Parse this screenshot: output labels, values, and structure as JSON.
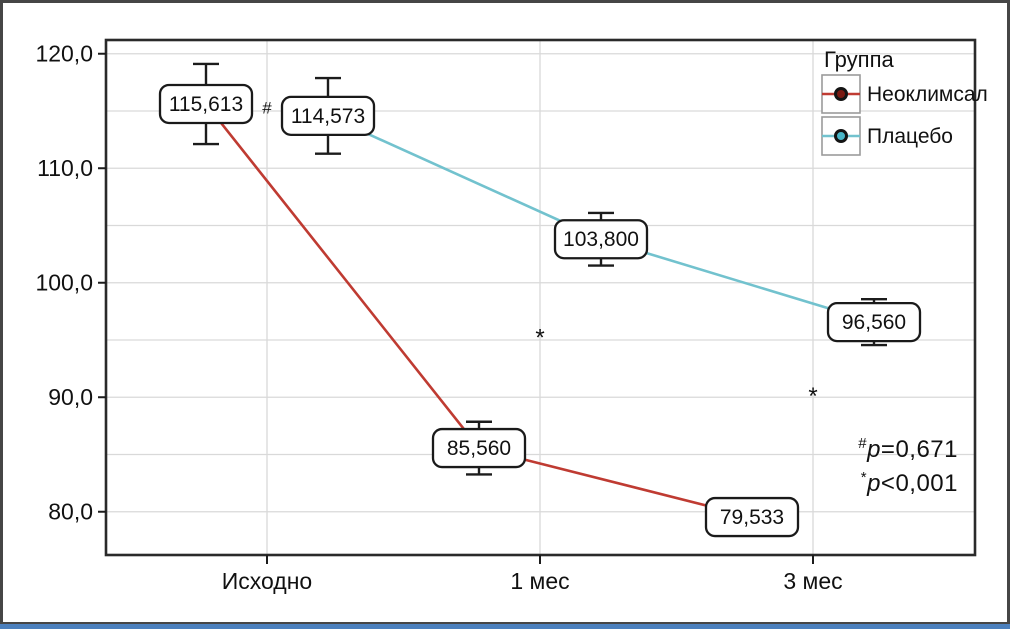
{
  "chart_data": {
    "type": "line",
    "title": "",
    "xlabel": "",
    "ylabel": "",
    "categories": [
      "Исходно",
      "1 мес",
      "3 мес"
    ],
    "ylim": [
      76.2,
      121.2
    ],
    "yticks": [
      120.0,
      110.0,
      100.0,
      90.0,
      80.0
    ],
    "ytick_labels": [
      "120,0",
      "110,0",
      "100,0",
      "90,0",
      "80,0"
    ],
    "minor_grid_step": 5,
    "grid": true,
    "grid_color": "#d9d9d9",
    "legend_title": "Группа",
    "legend_position": "top-right-inside",
    "series": [
      {
        "name": "Неоклимсал",
        "color": "#bf3b32",
        "marker_fill": "#7a1a12",
        "values": [
          115.613,
          85.56,
          79.533
        ],
        "value_labels": [
          "115,613",
          "85,560",
          "79,533"
        ],
        "error": [
          3.5,
          2.3,
          0
        ]
      },
      {
        "name": "Плацебо",
        "color": "#72c2ce",
        "marker_fill": "#49b6c8",
        "values": [
          114.573,
          103.8,
          96.56
        ],
        "value_labels": [
          "114,573",
          "103,800",
          "96,560"
        ],
        "error": [
          3.3,
          2.3,
          2.0
        ]
      }
    ],
    "annotations": [
      {
        "text": "#",
        "category_index": 0,
        "value": 115.3
      },
      {
        "text": "*",
        "category_index": 1,
        "value": 95.3
      },
      {
        "text": "*",
        "category_index": 2,
        "value": 90.2
      }
    ],
    "footnotes": [
      {
        "marker": "#",
        "var": "p",
        "rest": "=0,671"
      },
      {
        "marker": "*",
        "var": "p",
        "rest": "<0,001"
      }
    ]
  }
}
